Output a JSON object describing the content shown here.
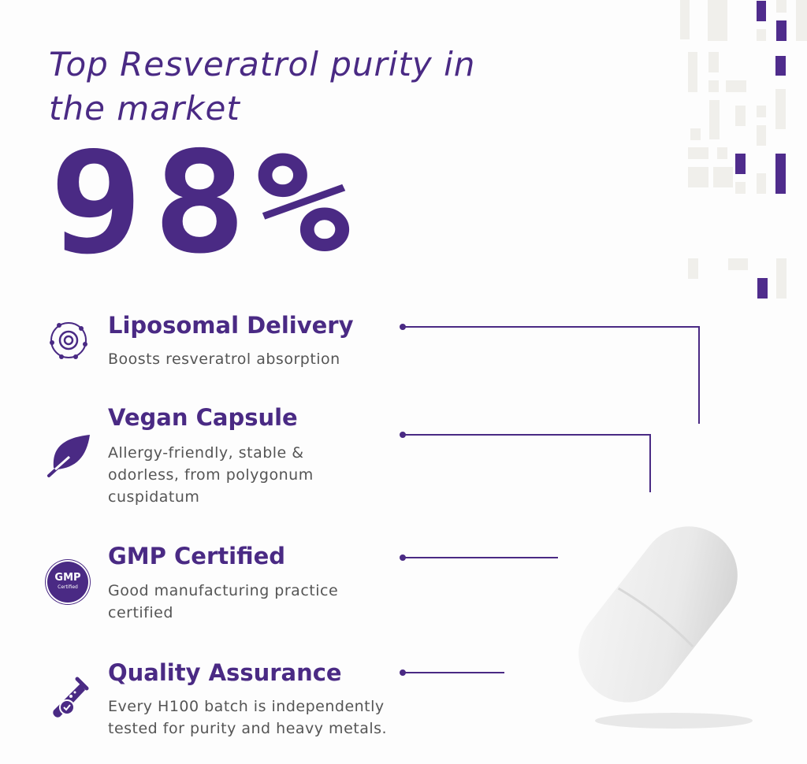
{
  "headline": "Top Resveratrol purity in the market",
  "purity": "98%",
  "features": [
    {
      "title": "Liposomal Delivery",
      "description": "Boosts resveratrol absorption",
      "icon": "atom-icon"
    },
    {
      "title": "Vegan Capsule",
      "description": "Allergy-friendly, stable & odorless, from polygonum cuspidatum",
      "icon": "leaf-icon"
    },
    {
      "title": "GMP Certified",
      "description": "Good manufacturing practice certified",
      "icon": "gmp-badge-icon",
      "badge_text": "GMP",
      "badge_sub": "Certified"
    },
    {
      "title": "Quality Assurance",
      "description": "Every H100 batch is independently tested for purity and heavy metals.",
      "icon": "test-tube-icon"
    }
  ],
  "colors": {
    "accent": "#4a2a84",
    "text": "#555555",
    "background": "#fdfdfd"
  }
}
